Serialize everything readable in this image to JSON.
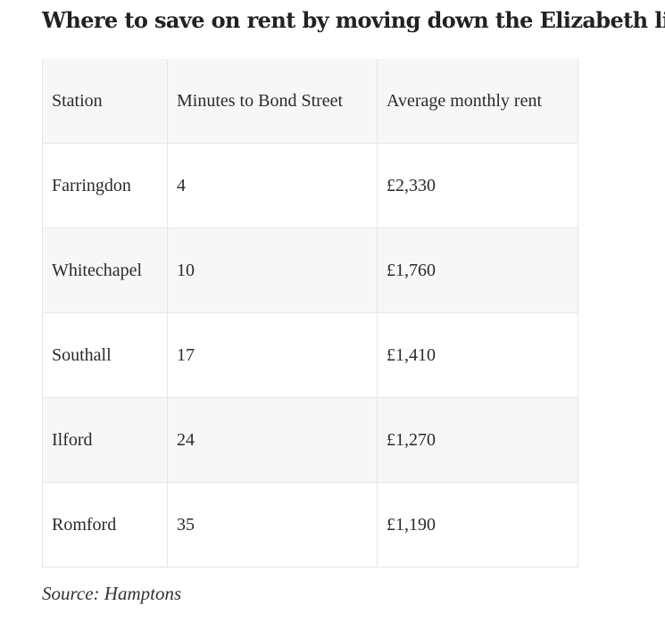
{
  "title": "Where to save on rent by moving down the Elizabeth line",
  "table": {
    "headers": [
      "Station",
      "Minutes to Bond Street",
      "Average monthly rent"
    ],
    "rows": [
      [
        "Farringdon",
        "4",
        "£2,330"
      ],
      [
        "Whitechapel",
        "10",
        "£1,760"
      ],
      [
        "Southall",
        "17",
        "£1,410"
      ],
      [
        "Ilford",
        "24",
        "£1,270"
      ],
      [
        "Romford",
        "35",
        "£1,190"
      ]
    ]
  },
  "source": "Source: Hamptons",
  "colors": {
    "header_bg": "#f7f7f7",
    "stripe_bg": "#f7f7f7",
    "border": "#e6e6e6",
    "text": "#222222"
  }
}
